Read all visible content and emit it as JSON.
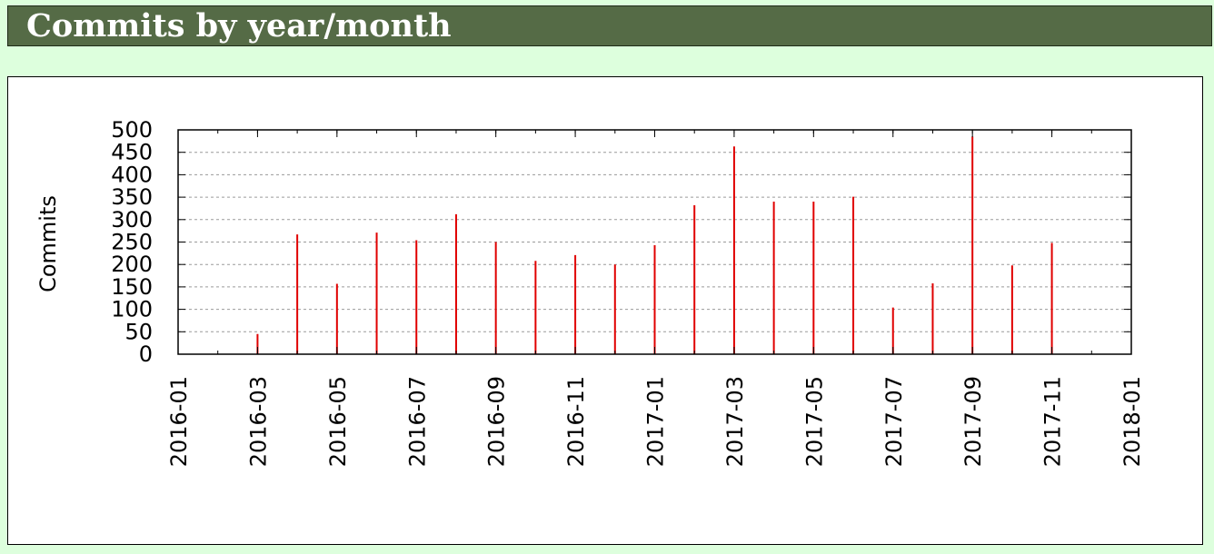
{
  "header": {
    "title": "Commits by year/month"
  },
  "chart_data": {
    "type": "bar",
    "ylabel": "Commits",
    "xlabel": "",
    "ylim": [
      0,
      500
    ],
    "y_ticks": [
      "0",
      "50",
      "100",
      "150",
      "200",
      "250",
      "300",
      "350",
      "400",
      "450",
      "500"
    ],
    "xlim": [
      "2016-01",
      "2018-01"
    ],
    "x_ticks": [
      "2016-01",
      "2016-03",
      "2016-05",
      "2016-07",
      "2016-09",
      "2016-11",
      "2017-01",
      "2017-03",
      "2017-05",
      "2017-07",
      "2017-09",
      "2017-11",
      "2018-01"
    ],
    "grid": true,
    "bar_color": "#e00000",
    "categories": [
      "2016-03",
      "2016-04",
      "2016-05",
      "2016-06",
      "2016-07",
      "2016-08",
      "2016-09",
      "2016-10",
      "2016-11",
      "2016-12",
      "2017-01",
      "2017-02",
      "2017-03",
      "2017-04",
      "2017-05",
      "2017-06",
      "2017-07",
      "2017-08",
      "2017-09",
      "2017-10",
      "2017-11"
    ],
    "values": [
      45,
      267,
      157,
      271,
      254,
      312,
      250,
      208,
      221,
      200,
      243,
      332,
      463,
      340,
      340,
      351,
      104,
      158,
      485,
      198,
      248
    ]
  }
}
